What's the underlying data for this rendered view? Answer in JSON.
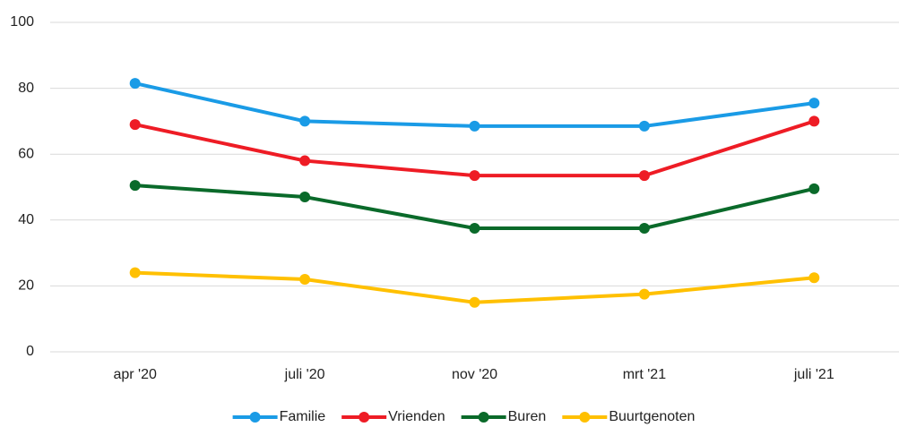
{
  "chart_data": {
    "type": "line",
    "categories": [
      "apr '20",
      "juli '20",
      "nov '20",
      "mrt '21",
      "juli '21"
    ],
    "series": [
      {
        "name": "Familie",
        "color": "#1a9be6",
        "values": [
          81.5,
          70,
          68.5,
          68.5,
          75.5
        ]
      },
      {
        "name": "Vrienden",
        "color": "#ee1c25",
        "values": [
          69,
          58,
          53.5,
          53.5,
          70
        ]
      },
      {
        "name": "Buren",
        "color": "#0a6a2a",
        "values": [
          50.5,
          47,
          37.5,
          37.5,
          49.5
        ]
      },
      {
        "name": "Buurtgenoten",
        "color": "#ffc000",
        "values": [
          24,
          22,
          15,
          17.5,
          22.5
        ]
      }
    ],
    "ylim": [
      0,
      100
    ],
    "yticks": [
      0,
      20,
      40,
      60,
      80,
      100
    ],
    "grid": true,
    "legend": "bottom"
  }
}
